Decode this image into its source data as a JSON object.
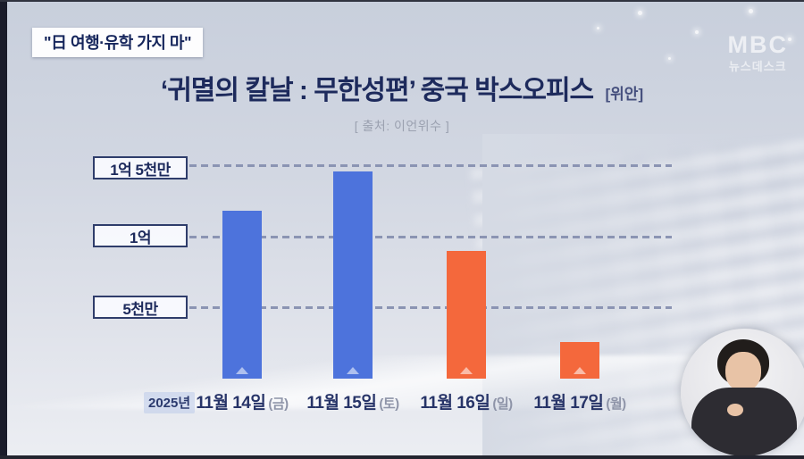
{
  "broadcast": {
    "badge": "\"日 여행·유학 가지 마\"",
    "logo": "MBC",
    "logo_sub": "뉴스데스크"
  },
  "chart": {
    "title_main": "‘귀멸의 칼날 : 무한성편’ 중국 박스오피스",
    "title_unit": "[위안]",
    "source": "[ 출처: 이언위수 ]",
    "year": "2025년",
    "y_labels": [
      "1억 5천만",
      "1억",
      "5천만"
    ],
    "days": [
      "11월 14일",
      "11월 15일",
      "11월 16일",
      "11월 17일"
    ],
    "weekdays": [
      "(금)",
      "(토)",
      "(일)",
      "(월)"
    ]
  },
  "chart_data": {
    "type": "bar",
    "title": "‘귀멸의 칼날 : 무한성편’ 중국 박스오피스 [위안]",
    "source": "이언위수",
    "unit": "위안",
    "categories": [
      "11월 14일 (금)",
      "11월 15일 (토)",
      "11월 16일 (일)",
      "11월 17일 (월)"
    ],
    "values": [
      118000000,
      146000000,
      90000000,
      26000000
    ],
    "bar_colors": [
      "#4d73dc",
      "#4d73dc",
      "#f4683c",
      "#f4683c"
    ],
    "y_ticks": [
      "5천만",
      "1억",
      "1억 5천만"
    ],
    "y_tick_values": [
      50000000,
      100000000,
      150000000
    ],
    "ylim": [
      0,
      160000000
    ],
    "grid": "dashed-horizontal",
    "legend": "none"
  }
}
